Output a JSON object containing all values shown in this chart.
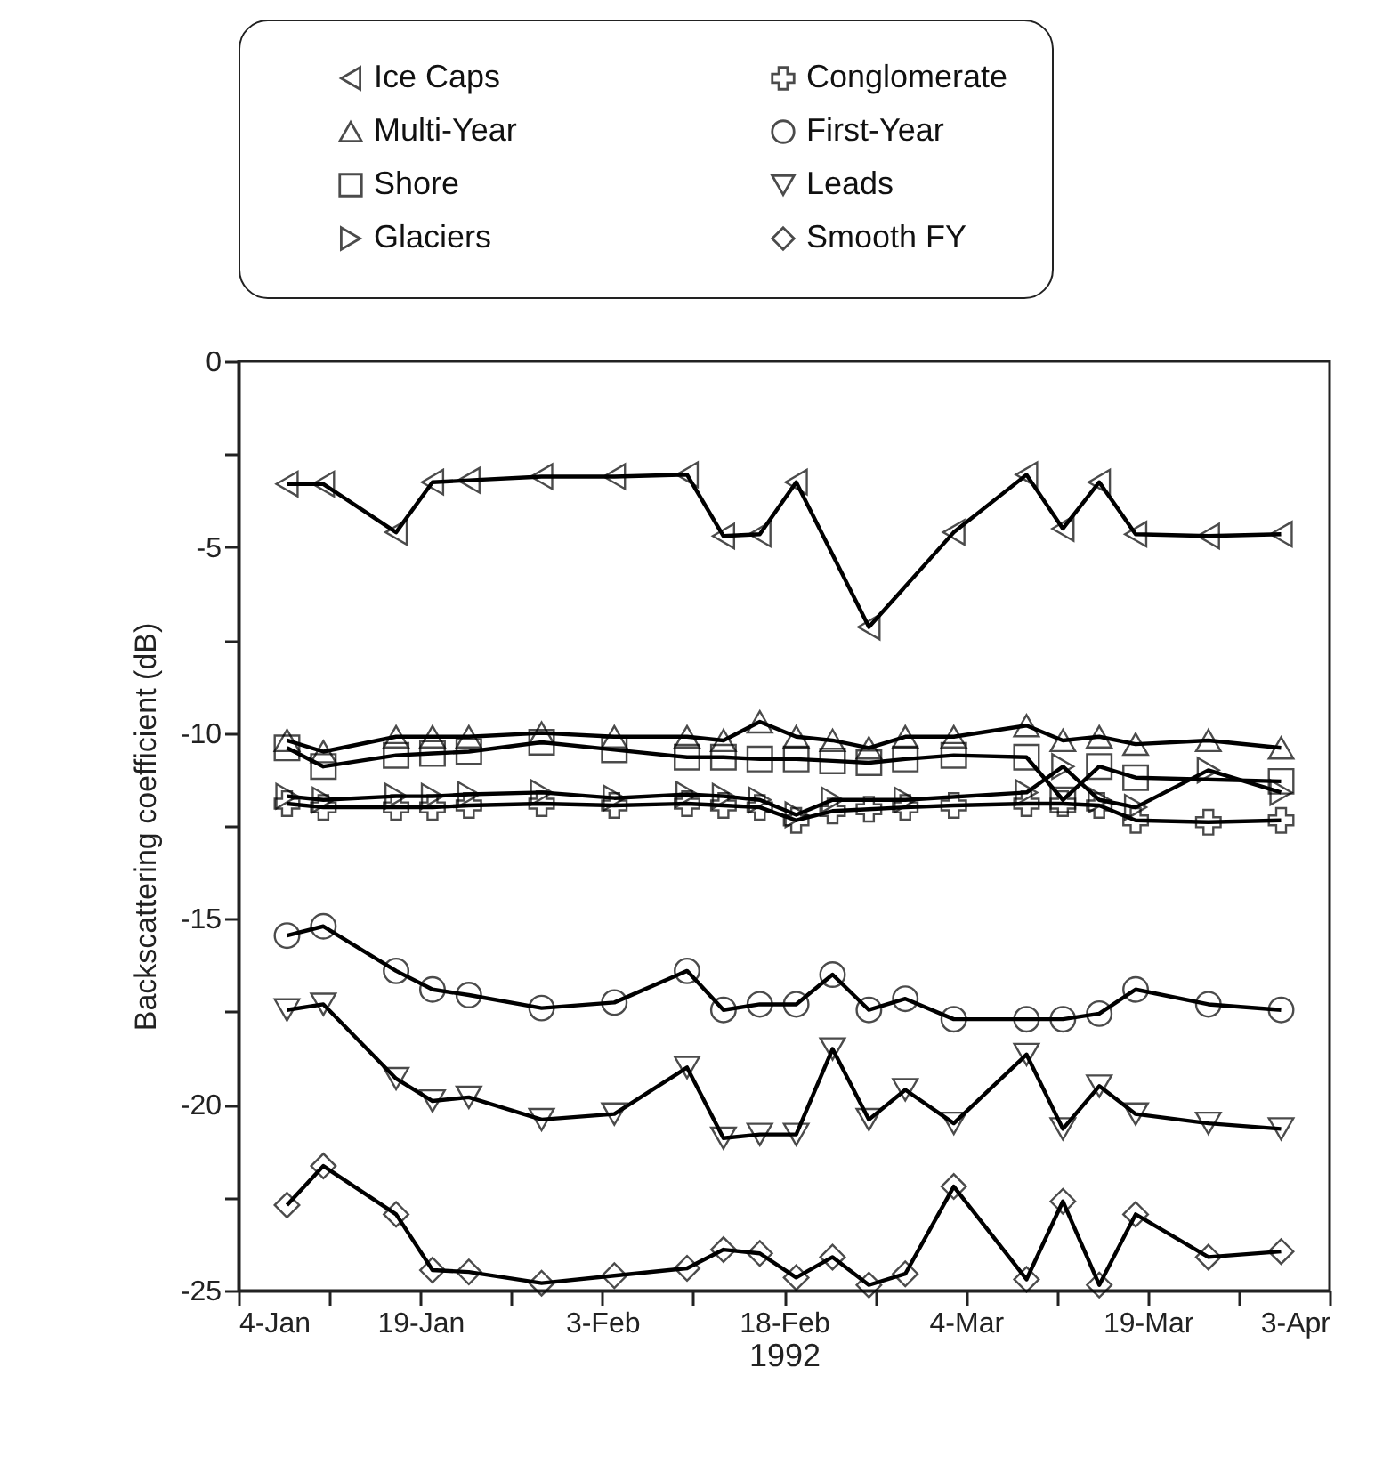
{
  "chart_data": {
    "type": "line",
    "xlabel": "1992",
    "ylabel": "Backscattering coefficient (dB)",
    "x": [
      "1992-01-08",
      "1992-01-11",
      "1992-01-17",
      "1992-01-20",
      "1992-01-23",
      "1992-01-29",
      "1992-02-04",
      "1992-02-10",
      "1992-02-13",
      "1992-02-16",
      "1992-02-19",
      "1992-02-22",
      "1992-02-25",
      "1992-02-28",
      "1992-03-03",
      "1992-03-09",
      "1992-03-12",
      "1992-03-15",
      "1992-03-18",
      "1992-03-24",
      "1992-03-30"
    ],
    "series": [
      {
        "name": "Ice Caps",
        "color": "#000000",
        "marker": "triangle-left",
        "x": [
          "1992-01-08",
          "1992-01-11",
          "1992-01-17",
          "1992-01-20",
          "1992-01-23",
          "1992-01-29",
          "1992-02-04",
          "1992-02-10",
          "1992-02-13",
          "1992-02-16",
          "1992-02-19",
          "1992-02-25",
          "1992-03-03",
          "1992-03-09",
          "1992-03-12",
          "1992-03-15",
          "1992-03-18",
          "1992-03-24",
          "1992-03-30"
        ],
        "values": [
          -3.3,
          -3.3,
          -4.6,
          -3.25,
          -3.2,
          -3.1,
          -3.1,
          -3.05,
          -4.7,
          -4.65,
          -3.25,
          -7.15,
          -4.6,
          -3.05,
          -4.5,
          -3.25,
          -4.65,
          -4.7,
          -4.65
        ]
      },
      {
        "name": "Multi-Year",
        "color": "#000000",
        "marker": "triangle",
        "values": [
          -10.2,
          -10.5,
          -10.1,
          -10.1,
          -10.1,
          -10.0,
          -10.1,
          -10.1,
          -10.2,
          -9.7,
          -10.1,
          -10.2,
          -10.4,
          -10.1,
          -10.1,
          -9.8,
          -10.2,
          -10.1,
          -10.3,
          -10.2,
          -10.4
        ]
      },
      {
        "name": "Shore",
        "color": "#000000",
        "marker": "square",
        "x": [
          "1992-01-08",
          "1992-01-11",
          "1992-01-17",
          "1992-01-20",
          "1992-01-23",
          "1992-01-29",
          "1992-02-04",
          "1992-02-10",
          "1992-02-13",
          "1992-02-16",
          "1992-02-19",
          "1992-02-22",
          "1992-02-25",
          "1992-02-28",
          "1992-03-03",
          "1992-03-09",
          "1992-03-12",
          "1992-03-15",
          "1992-03-18",
          "1992-03-30"
        ],
        "values": [
          -10.4,
          -10.9,
          -10.6,
          -10.55,
          -10.5,
          -10.25,
          -10.45,
          -10.65,
          -10.65,
          -10.7,
          -10.7,
          -10.75,
          -10.8,
          -10.7,
          -10.6,
          -10.65,
          -11.8,
          -10.9,
          -11.2,
          -11.3
        ]
      },
      {
        "name": "Glaciers",
        "color": "#000000",
        "marker": "triangle-right",
        "x": [
          "1992-01-08",
          "1992-01-11",
          "1992-01-17",
          "1992-01-20",
          "1992-01-23",
          "1992-01-29",
          "1992-02-04",
          "1992-02-10",
          "1992-02-13",
          "1992-02-16",
          "1992-02-19",
          "1992-02-22",
          "1992-02-28",
          "1992-03-09",
          "1992-03-12",
          "1992-03-15",
          "1992-03-18",
          "1992-03-24",
          "1992-03-30"
        ],
        "values": [
          -11.7,
          -11.8,
          -11.7,
          -11.7,
          -11.65,
          -11.6,
          -11.75,
          -11.65,
          -11.7,
          -11.8,
          -12.2,
          -11.8,
          -11.8,
          -11.6,
          -10.9,
          -11.8,
          -12.0,
          -11.0,
          -11.6
        ]
      },
      {
        "name": "Conglomerate",
        "color": "#000000",
        "marker": "cross",
        "values": [
          -11.9,
          -12.0,
          -12.0,
          -12.0,
          -11.95,
          -11.9,
          -11.95,
          -11.9,
          -11.95,
          -12.0,
          -12.35,
          -12.1,
          -12.05,
          -12.0,
          -11.95,
          -11.9,
          -11.9,
          -11.95,
          -12.35,
          -12.4,
          -12.35
        ]
      },
      {
        "name": "First-Year",
        "color": "#000000",
        "marker": "circle",
        "values": [
          -15.45,
          -15.2,
          -16.4,
          -16.9,
          -17.05,
          -17.4,
          -17.25,
          -16.4,
          -17.45,
          -17.3,
          -17.3,
          -16.5,
          -17.45,
          -17.15,
          -17.7,
          -17.7,
          -17.7,
          -17.55,
          -16.9,
          -17.3,
          -17.45
        ]
      },
      {
        "name": "Leads",
        "color": "#000000",
        "marker": "triangle-down",
        "values": [
          -17.45,
          -17.3,
          -19.3,
          -19.9,
          -19.8,
          -20.4,
          -20.25,
          -19.0,
          -20.9,
          -20.8,
          -20.8,
          -18.5,
          -20.4,
          -19.6,
          -20.5,
          -18.65,
          -20.65,
          -19.5,
          -20.25,
          -20.5,
          -20.65
        ]
      },
      {
        "name": "Smooth FY",
        "color": "#000000",
        "marker": "diamond",
        "values": [
          -22.7,
          -21.65,
          -22.95,
          -24.45,
          -24.5,
          -24.8,
          -24.6,
          -24.4,
          -23.9,
          -24.0,
          -24.65,
          -24.1,
          -24.85,
          -24.55,
          -22.2,
          -24.7,
          -22.6,
          -24.85,
          -22.95,
          -24.1,
          -23.95
        ]
      }
    ],
    "xlim": [
      "1992-01-04",
      "1992-04-03"
    ],
    "xticks": [
      {
        "value": "1992-01-04",
        "label": "4-Jan"
      },
      {
        "value": "1992-01-11T12:00",
        "label": null
      },
      {
        "value": "1992-01-19",
        "label": "19-Jan"
      },
      {
        "value": "1992-01-26T12:00",
        "label": null
      },
      {
        "value": "1992-02-03",
        "label": "3-Feb"
      },
      {
        "value": "1992-02-10T12:00",
        "label": null
      },
      {
        "value": "1992-02-18",
        "label": "18-Feb"
      },
      {
        "value": "1992-02-25T12:00",
        "label": null
      },
      {
        "value": "1992-03-04",
        "label": "4-Mar"
      },
      {
        "value": "1992-03-11T12:00",
        "label": null
      },
      {
        "value": "1992-03-19",
        "label": "19-Mar"
      },
      {
        "value": "1992-03-26T12:00",
        "label": null
      },
      {
        "value": "1992-04-03",
        "label": "3-Apr"
      }
    ],
    "ylim": [
      -25,
      0
    ],
    "yticks": [
      0,
      {
        "value": -2.5,
        "label": null
      },
      -5,
      {
        "value": -7.5,
        "label": null
      },
      -10,
      {
        "value": -12.5,
        "label": null
      },
      -15,
      {
        "value": -17.5,
        "label": null
      },
      -20,
      {
        "value": -22.5,
        "label": null
      },
      -25
    ],
    "grid": false,
    "legend": "top",
    "line_style": "solid"
  }
}
